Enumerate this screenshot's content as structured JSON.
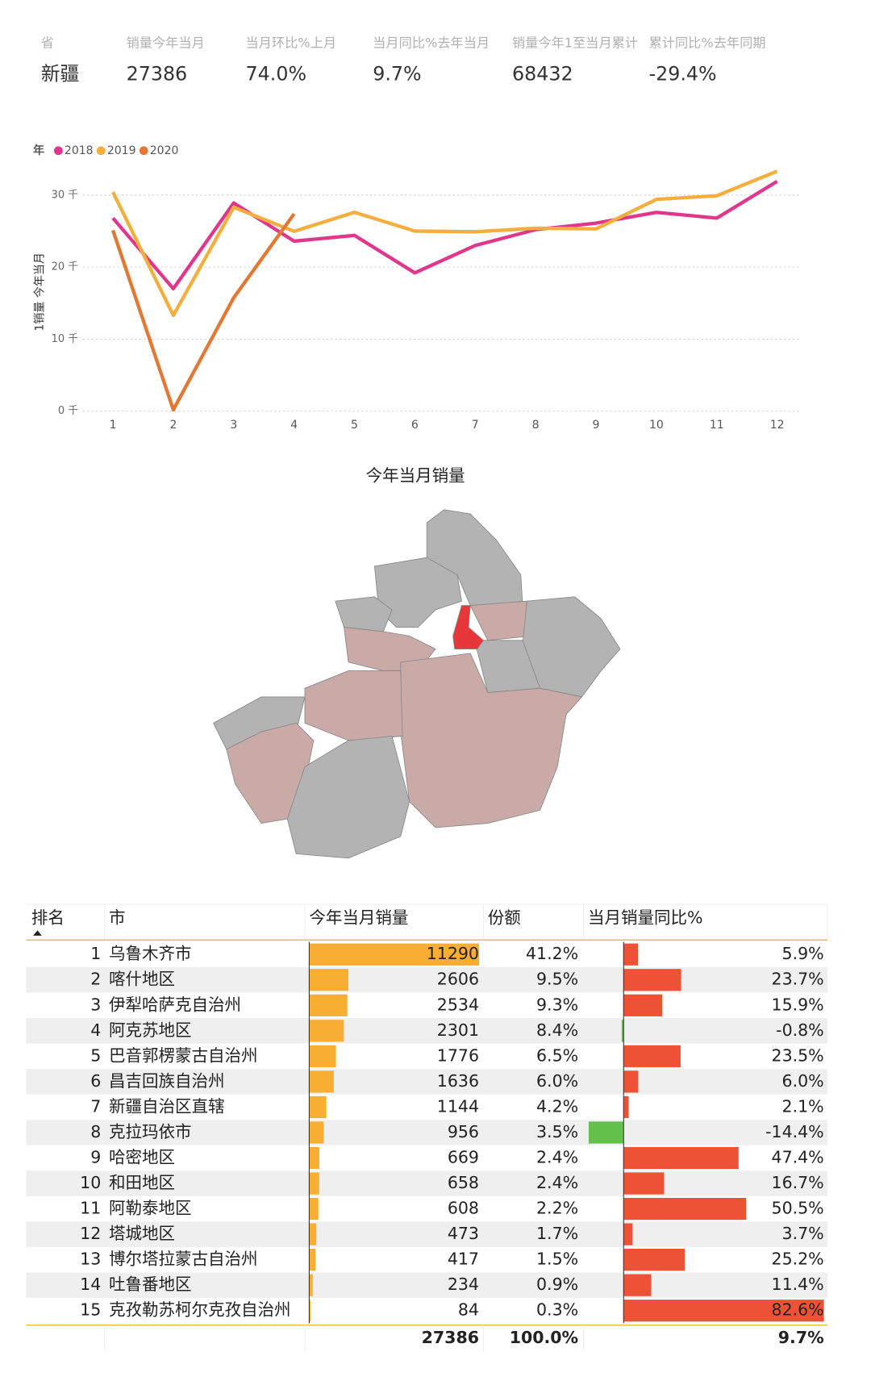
{
  "kpis": {
    "headers": [
      "省",
      "销量今年当月",
      "当月环比%上月",
      "当月同比%去年当月",
      "销量今年1至当月累计",
      "累计同比%去年同期"
    ],
    "values": [
      "新疆",
      "27386",
      "74.0%",
      "9.7%",
      "68432",
      "-29.4%"
    ],
    "colors": [
      "#333333",
      "#333333",
      "#e0464e",
      "#e0464e",
      "#333333",
      "#5cb85c"
    ]
  },
  "chart_data": {
    "type": "line",
    "legend_title": "年",
    "y_label": "1销量 今年当月",
    "x": [
      1,
      2,
      3,
      4,
      5,
      6,
      7,
      8,
      9,
      10,
      11,
      12
    ],
    "xlim": [
      0.5,
      12.4
    ],
    "xticks": [
      1,
      2,
      3,
      4,
      5,
      6,
      7,
      8,
      9,
      10,
      11,
      12
    ],
    "ylim": [
      0,
      34000
    ],
    "yticks": [
      {
        "value": 0,
        "label": "0 千"
      },
      {
        "value": 10000,
        "label": "10 千"
      },
      {
        "value": 20000,
        "label": "20 千"
      },
      {
        "value": 30000,
        "label": "30 千"
      }
    ],
    "grid": true,
    "legend": "top-left",
    "series": [
      {
        "name": "2018",
        "color": "#e0368c",
        "values": [
          26800,
          17000,
          28900,
          23600,
          24400,
          19200,
          23000,
          25200,
          26100,
          27600,
          26800,
          31900
        ]
      },
      {
        "name": "2019",
        "color": "#f4ae3d",
        "values": [
          30400,
          13300,
          28300,
          24965,
          27600,
          25000,
          24900,
          25400,
          25300,
          29400,
          29900,
          33300
        ]
      },
      {
        "name": "2020",
        "color": "#e37834",
        "values": [
          25106,
          200,
          15740,
          27386,
          null,
          null,
          null,
          null,
          null,
          null,
          null,
          null
        ]
      }
    ]
  },
  "map": {
    "title": "今年当月销量"
  },
  "table": {
    "headers": [
      "排名",
      "市",
      "今年当月销量",
      "份额",
      "当月销量同比%"
    ],
    "rows": [
      {
        "rank": 1,
        "city": "乌鲁木齐市",
        "sales": 11290,
        "share": "41.2%",
        "yoy": 5.9,
        "yoy_label": "5.9%"
      },
      {
        "rank": 2,
        "city": "喀什地区",
        "sales": 2606,
        "share": "9.5%",
        "yoy": 23.7,
        "yoy_label": "23.7%"
      },
      {
        "rank": 3,
        "city": "伊犁哈萨克自治州",
        "sales": 2534,
        "share": "9.3%",
        "yoy": 15.9,
        "yoy_label": "15.9%"
      },
      {
        "rank": 4,
        "city": "阿克苏地区",
        "sales": 2301,
        "share": "8.4%",
        "yoy": -0.8,
        "yoy_label": "-0.8%"
      },
      {
        "rank": 5,
        "city": "巴音郭楞蒙古自治州",
        "sales": 1776,
        "share": "6.5%",
        "yoy": 23.5,
        "yoy_label": "23.5%"
      },
      {
        "rank": 6,
        "city": "昌吉回族自治州",
        "sales": 1636,
        "share": "6.0%",
        "yoy": 6.0,
        "yoy_label": "6.0%"
      },
      {
        "rank": 7,
        "city": "新疆自治区直辖",
        "sales": 1144,
        "share": "4.2%",
        "yoy": 2.1,
        "yoy_label": "2.1%"
      },
      {
        "rank": 8,
        "city": "克拉玛依市",
        "sales": 956,
        "share": "3.5%",
        "yoy": -14.4,
        "yoy_label": "-14.4%"
      },
      {
        "rank": 9,
        "city": "哈密地区",
        "sales": 669,
        "share": "2.4%",
        "yoy": 47.4,
        "yoy_label": "47.4%"
      },
      {
        "rank": 10,
        "city": "和田地区",
        "sales": 658,
        "share": "2.4%",
        "yoy": 16.7,
        "yoy_label": "16.7%"
      },
      {
        "rank": 11,
        "city": "阿勒泰地区",
        "sales": 608,
        "share": "2.2%",
        "yoy": 50.5,
        "yoy_label": "50.5%"
      },
      {
        "rank": 12,
        "city": "塔城地区",
        "sales": 473,
        "share": "1.7%",
        "yoy": 3.7,
        "yoy_label": "3.7%"
      },
      {
        "rank": 13,
        "city": "博尔塔拉蒙古自治州",
        "sales": 417,
        "share": "1.5%",
        "yoy": 25.2,
        "yoy_label": "25.2%"
      },
      {
        "rank": 14,
        "city": "吐鲁番地区",
        "sales": 234,
        "share": "0.9%",
        "yoy": 11.4,
        "yoy_label": "11.4%"
      },
      {
        "rank": 15,
        "city": "克孜勒苏柯尔克孜自治州",
        "sales": 84,
        "share": "0.3%",
        "yoy": 82.6,
        "yoy_label": "82.6%"
      }
    ],
    "total": {
      "sales": "27386",
      "share": "100.0%",
      "yoy": "9.7%"
    }
  }
}
